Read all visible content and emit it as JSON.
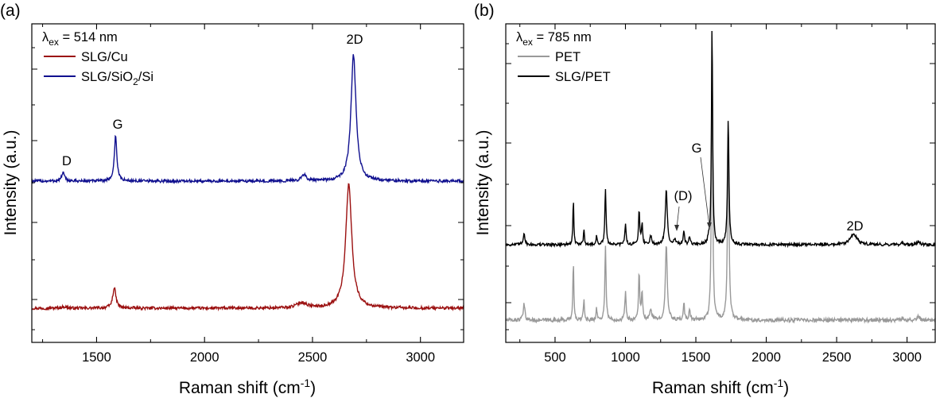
{
  "panels": [
    {
      "label": "(a)",
      "excitation": {
        "prefix": "λ",
        "sub": "ex",
        "suffix": " = 514 nm"
      },
      "xlabel": {
        "text": "Raman shift (cm",
        "sup": "-1",
        "close": ")"
      },
      "ylabel": "Intensity (a.u.)",
      "legend": [
        {
          "name": "SLG/Cu",
          "color": "#9b1010"
        },
        {
          "name": "SLG/SiO2/Si",
          "color": "#10108f",
          "pre": "SLG/SiO",
          "sub": "2",
          "post": "/Si"
        }
      ],
      "annotations": [
        "D",
        "G",
        "2D"
      ]
    },
    {
      "label": "(b)",
      "excitation": {
        "prefix": "λ",
        "sub": "ex",
        "suffix": " = 785 nm"
      },
      "xlabel": {
        "text": "Raman shift (cm",
        "sup": "-1",
        "close": ")"
      },
      "ylabel": "Intensity (a.u.)",
      "legend": [
        {
          "name": "PET",
          "color": "#999999"
        },
        {
          "name": "SLG/PET",
          "color": "#000000"
        }
      ],
      "annotations": [
        "G",
        "(D)",
        "2D"
      ]
    }
  ],
  "chart_data": [
    {
      "type": "line",
      "xlim": [
        1200,
        3200
      ],
      "xticks": [
        1500,
        2000,
        2500,
        3000
      ],
      "ylim": [
        0,
        1
      ],
      "yticks_labeled": false,
      "series": [
        {
          "name": "SLG/Cu",
          "color": "#9b1010",
          "baseline": 0.02,
          "peaks": [
            {
              "x": 1350,
              "height": 0.006,
              "width": 15
            },
            {
              "x": 1582,
              "height": 0.085,
              "width": 9
            },
            {
              "x": 2450,
              "height": 0.022,
              "width": 28
            },
            {
              "x": 2668,
              "height": 0.52,
              "width": 17
            }
          ]
        },
        {
          "name": "SLG/SiO2/Si",
          "color": "#10108f",
          "baseline": 0.5,
          "peaks": [
            {
              "x": 1345,
              "height": 0.035,
              "width": 8
            },
            {
              "x": 1588,
              "height": 0.19,
              "width": 7
            },
            {
              "x": 2460,
              "height": 0.025,
              "width": 14
            },
            {
              "x": 2690,
              "height": 0.53,
              "width": 14
            }
          ]
        }
      ]
    },
    {
      "type": "line",
      "xlim": [
        150,
        3200
      ],
      "xticks": [
        500,
        1000,
        1500,
        2000,
        2500,
        3000
      ],
      "ylim": [
        0,
        1
      ],
      "yticks_labeled": false,
      "series": [
        {
          "name": "PET",
          "color": "#999999",
          "baseline": 0.03,
          "peaks": [
            {
              "x": 280,
              "height": 0.05,
              "width": 7
            },
            {
              "x": 630,
              "height": 0.185,
              "width": 4
            },
            {
              "x": 705,
              "height": 0.07,
              "width": 4
            },
            {
              "x": 795,
              "height": 0.035,
              "width": 5
            },
            {
              "x": 858,
              "height": 0.235,
              "width": 5
            },
            {
              "x": 1000,
              "height": 0.09,
              "width": 5
            },
            {
              "x": 1097,
              "height": 0.15,
              "width": 5
            },
            {
              "x": 1118,
              "height": 0.085,
              "width": 5
            },
            {
              "x": 1180,
              "height": 0.035,
              "width": 8
            },
            {
              "x": 1290,
              "height": 0.235,
              "width": 8
            },
            {
              "x": 1415,
              "height": 0.055,
              "width": 5
            },
            {
              "x": 1455,
              "height": 0.03,
              "width": 6
            },
            {
              "x": 1615,
              "height": 0.9,
              "width": 5
            },
            {
              "x": 1730,
              "height": 0.6,
              "width": 6
            },
            {
              "x": 2970,
              "height": 0.008,
              "width": 10
            },
            {
              "x": 3080,
              "height": 0.015,
              "width": 10
            }
          ]
        },
        {
          "name": "SLG/PET",
          "color": "#000000",
          "baseline": 0.34,
          "peaks": [
            {
              "x": 280,
              "height": 0.05,
              "width": 7
            },
            {
              "x": 630,
              "height": 0.185,
              "width": 4
            },
            {
              "x": 705,
              "height": 0.07,
              "width": 4
            },
            {
              "x": 795,
              "height": 0.035,
              "width": 5
            },
            {
              "x": 858,
              "height": 0.235,
              "width": 5
            },
            {
              "x": 1000,
              "height": 0.09,
              "width": 5
            },
            {
              "x": 1097,
              "height": 0.15,
              "width": 5
            },
            {
              "x": 1118,
              "height": 0.085,
              "width": 5
            },
            {
              "x": 1180,
              "height": 0.035,
              "width": 8
            },
            {
              "x": 1290,
              "height": 0.235,
              "width": 8
            },
            {
              "x": 1350,
              "height": 0.02,
              "width": 10
            },
            {
              "x": 1415,
              "height": 0.055,
              "width": 5
            },
            {
              "x": 1455,
              "height": 0.03,
              "width": 6
            },
            {
              "x": 1590,
              "height": 0.025,
              "width": 5
            },
            {
              "x": 1615,
              "height": 0.93,
              "width": 5
            },
            {
              "x": 1730,
              "height": 0.52,
              "width": 6
            },
            {
              "x": 2620,
              "height": 0.045,
              "width": 28
            },
            {
              "x": 2970,
              "height": 0.008,
              "width": 10
            },
            {
              "x": 3080,
              "height": 0.015,
              "width": 10
            }
          ]
        }
      ]
    }
  ]
}
